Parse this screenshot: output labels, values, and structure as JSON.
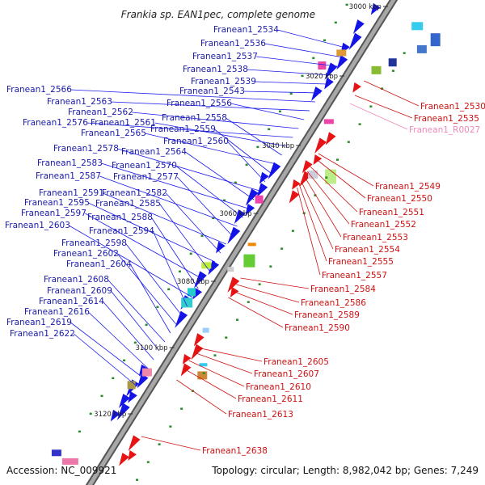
{
  "title": "Frankia sp. EAN1pec, complete genome",
  "accession": "Accession: NC_009921",
  "topology": "Topology: circular; Length: 8,982,042 bp; Genes: 7,249",
  "colors": {
    "backbone": "#8a8a8a",
    "forward_gene": "#1414e6",
    "reverse_gene": "#e61414",
    "rna_gene": "#ee88bb",
    "tick": "#2a8a2a"
  },
  "kbp_ticks": [
    "3000 kbp",
    "3020 kbp",
    "3040 kbp",
    "3060 kbp",
    "3080 kbp",
    "3100 kbp",
    "3120 kbp"
  ],
  "left_labels": [
    "Franean1_2534",
    "Franean1_2536",
    "Franean1_2537",
    "Franean1_2538",
    "Franean1_2539",
    "Franean1_2543",
    "Franean1_2566",
    "Franean1_2563",
    "Franean1_2556",
    "Franean1_2562",
    "Franean1_2576",
    "Franean1_2561",
    "Franean1_2558",
    "Franean1_2565",
    "Franean1_2559",
    "Franean1_2560",
    "Franean1_2578",
    "Franean1_2564",
    "Franean1_2583",
    "Franean1_2570",
    "Franean1_2587",
    "Franean1_2577",
    "Franean1_2591",
    "Franean1_2582",
    "Franean1_2595",
    "Franean1_2585",
    "Franean1_2597",
    "Franean1_2588",
    "Franean1_2603",
    "Franean1_2594",
    "Franean1_2598",
    "Franean1_2602",
    "Franean1_2604",
    "Franean1_2608",
    "Franean1_2609",
    "Franean1_2614",
    "Franean1_2616",
    "Franean1_2619",
    "Franean1_2622"
  ],
  "right_labels": [
    "Franean1_2530",
    "Franean1_2535",
    "Franean1_R0027",
    "Franean1_2549",
    "Franean1_2550",
    "Franean1_2551",
    "Franean1_2552",
    "Franean1_2553",
    "Franean1_2554",
    "Franean1_2555",
    "Franean1_2557",
    "Franean1_2584",
    "Franean1_2586",
    "Franean1_2589",
    "Franean1_2590",
    "Franean1_2605",
    "Franean1_2607",
    "Franean1_2610",
    "Franean1_2611",
    "Franean1_2613",
    "Franean1_2638"
  ]
}
